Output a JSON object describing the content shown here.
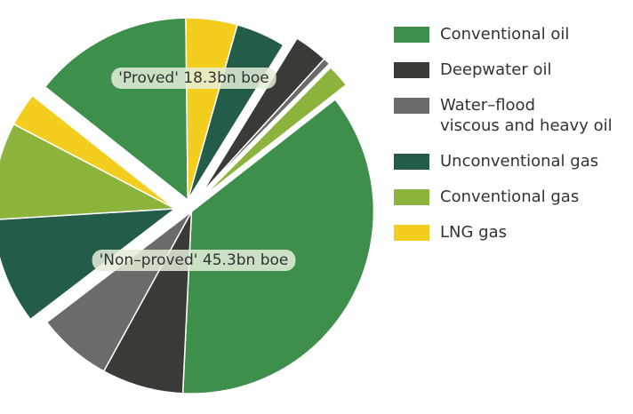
{
  "chart_data": {
    "type": "pie",
    "categories": [
      "Conventional oil",
      "Deepwater oil",
      "Water–flood\nviscous and heavy oil",
      "Unconventional gas",
      "Conventional gas",
      "LNG gas"
    ],
    "colors": [
      "#3e8f4b",
      "#3a3a37",
      "#6b6b69",
      "#235c49",
      "#8cb33b",
      "#f4ce1e"
    ],
    "series": [
      {
        "name": "'Non–proved' 45.3bn boe",
        "values": [
          23.1,
          4.6,
          4.2,
          6.0,
          5.5,
          1.9
        ]
      },
      {
        "name": "'Proved' 18.3bn boe",
        "values": [
          9.0,
          1.9,
          0.4,
          2.8,
          1.3,
          2.9
        ]
      }
    ]
  }
}
